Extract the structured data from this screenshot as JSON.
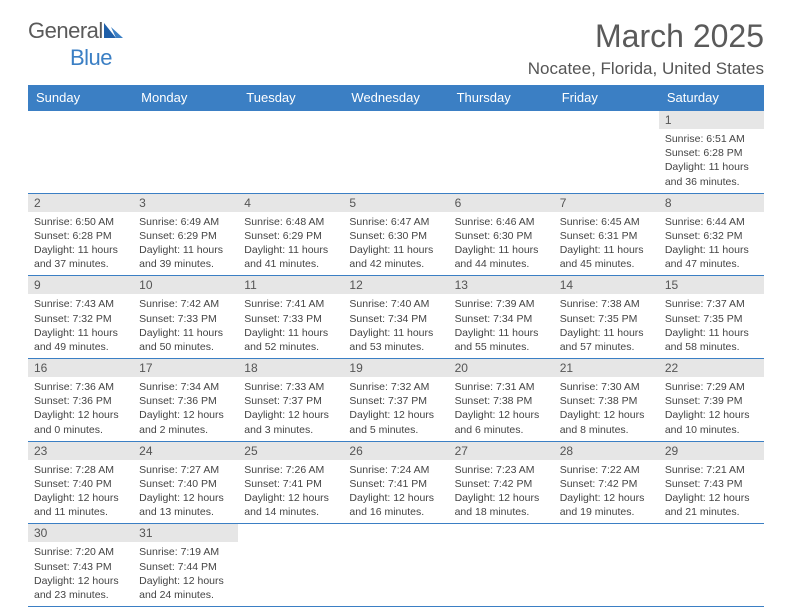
{
  "logo": {
    "text_a": "General",
    "text_b": "Blue"
  },
  "colors": {
    "header_bg": "#3b7fc4",
    "header_fg": "#ffffff",
    "daynum_bg": "#e6e6e6",
    "text": "#444444",
    "rule": "#3b7fc4"
  },
  "title": "March 2025",
  "location": "Nocatee, Florida, United States",
  "weekdays": [
    "Sunday",
    "Monday",
    "Tuesday",
    "Wednesday",
    "Thursday",
    "Friday",
    "Saturday"
  ],
  "weeks": [
    [
      {
        "n": "",
        "empty": true
      },
      {
        "n": "",
        "empty": true
      },
      {
        "n": "",
        "empty": true
      },
      {
        "n": "",
        "empty": true
      },
      {
        "n": "",
        "empty": true
      },
      {
        "n": "",
        "empty": true
      },
      {
        "n": "1",
        "sunrise": "6:51 AM",
        "sunset": "6:28 PM",
        "day_h": 11,
        "day_m": 36
      }
    ],
    [
      {
        "n": "2",
        "sunrise": "6:50 AM",
        "sunset": "6:28 PM",
        "day_h": 11,
        "day_m": 37
      },
      {
        "n": "3",
        "sunrise": "6:49 AM",
        "sunset": "6:29 PM",
        "day_h": 11,
        "day_m": 39
      },
      {
        "n": "4",
        "sunrise": "6:48 AM",
        "sunset": "6:29 PM",
        "day_h": 11,
        "day_m": 41
      },
      {
        "n": "5",
        "sunrise": "6:47 AM",
        "sunset": "6:30 PM",
        "day_h": 11,
        "day_m": 42
      },
      {
        "n": "6",
        "sunrise": "6:46 AM",
        "sunset": "6:30 PM",
        "day_h": 11,
        "day_m": 44
      },
      {
        "n": "7",
        "sunrise": "6:45 AM",
        "sunset": "6:31 PM",
        "day_h": 11,
        "day_m": 45
      },
      {
        "n": "8",
        "sunrise": "6:44 AM",
        "sunset": "6:32 PM",
        "day_h": 11,
        "day_m": 47
      }
    ],
    [
      {
        "n": "9",
        "sunrise": "7:43 AM",
        "sunset": "7:32 PM",
        "day_h": 11,
        "day_m": 49
      },
      {
        "n": "10",
        "sunrise": "7:42 AM",
        "sunset": "7:33 PM",
        "day_h": 11,
        "day_m": 50
      },
      {
        "n": "11",
        "sunrise": "7:41 AM",
        "sunset": "7:33 PM",
        "day_h": 11,
        "day_m": 52
      },
      {
        "n": "12",
        "sunrise": "7:40 AM",
        "sunset": "7:34 PM",
        "day_h": 11,
        "day_m": 53
      },
      {
        "n": "13",
        "sunrise": "7:39 AM",
        "sunset": "7:34 PM",
        "day_h": 11,
        "day_m": 55
      },
      {
        "n": "14",
        "sunrise": "7:38 AM",
        "sunset": "7:35 PM",
        "day_h": 11,
        "day_m": 57
      },
      {
        "n": "15",
        "sunrise": "7:37 AM",
        "sunset": "7:35 PM",
        "day_h": 11,
        "day_m": 58
      }
    ],
    [
      {
        "n": "16",
        "sunrise": "7:36 AM",
        "sunset": "7:36 PM",
        "day_h": 12,
        "day_m": 0
      },
      {
        "n": "17",
        "sunrise": "7:34 AM",
        "sunset": "7:36 PM",
        "day_h": 12,
        "day_m": 2
      },
      {
        "n": "18",
        "sunrise": "7:33 AM",
        "sunset": "7:37 PM",
        "day_h": 12,
        "day_m": 3
      },
      {
        "n": "19",
        "sunrise": "7:32 AM",
        "sunset": "7:37 PM",
        "day_h": 12,
        "day_m": 5
      },
      {
        "n": "20",
        "sunrise": "7:31 AM",
        "sunset": "7:38 PM",
        "day_h": 12,
        "day_m": 6
      },
      {
        "n": "21",
        "sunrise": "7:30 AM",
        "sunset": "7:38 PM",
        "day_h": 12,
        "day_m": 8
      },
      {
        "n": "22",
        "sunrise": "7:29 AM",
        "sunset": "7:39 PM",
        "day_h": 12,
        "day_m": 10
      }
    ],
    [
      {
        "n": "23",
        "sunrise": "7:28 AM",
        "sunset": "7:40 PM",
        "day_h": 12,
        "day_m": 11
      },
      {
        "n": "24",
        "sunrise": "7:27 AM",
        "sunset": "7:40 PM",
        "day_h": 12,
        "day_m": 13
      },
      {
        "n": "25",
        "sunrise": "7:26 AM",
        "sunset": "7:41 PM",
        "day_h": 12,
        "day_m": 14
      },
      {
        "n": "26",
        "sunrise": "7:24 AM",
        "sunset": "7:41 PM",
        "day_h": 12,
        "day_m": 16
      },
      {
        "n": "27",
        "sunrise": "7:23 AM",
        "sunset": "7:42 PM",
        "day_h": 12,
        "day_m": 18
      },
      {
        "n": "28",
        "sunrise": "7:22 AM",
        "sunset": "7:42 PM",
        "day_h": 12,
        "day_m": 19
      },
      {
        "n": "29",
        "sunrise": "7:21 AM",
        "sunset": "7:43 PM",
        "day_h": 12,
        "day_m": 21
      }
    ],
    [
      {
        "n": "30",
        "sunrise": "7:20 AM",
        "sunset": "7:43 PM",
        "day_h": 12,
        "day_m": 23
      },
      {
        "n": "31",
        "sunrise": "7:19 AM",
        "sunset": "7:44 PM",
        "day_h": 12,
        "day_m": 24
      },
      {
        "n": "",
        "empty": true
      },
      {
        "n": "",
        "empty": true
      },
      {
        "n": "",
        "empty": true
      },
      {
        "n": "",
        "empty": true
      },
      {
        "n": "",
        "empty": true
      }
    ]
  ],
  "labels": {
    "sunrise": "Sunrise:",
    "sunset": "Sunset:",
    "daylight_prefix": "Daylight:",
    "hours_word": "hours",
    "and_word": "and",
    "minutes_word": "minutes."
  }
}
